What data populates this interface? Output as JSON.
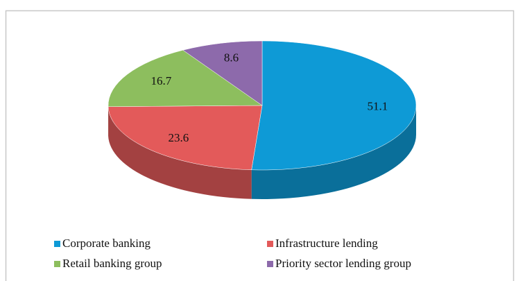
{
  "chart_data": {
    "type": "pie",
    "categories": [
      "Corporate banking",
      "Infrastructure lending",
      "Retail banking group",
      "Priority sector lending group"
    ],
    "values": [
      51.1,
      23.6,
      16.7,
      8.6
    ],
    "colors": [
      "#0e9ad6",
      "#e35a5a",
      "#8dbe5e",
      "#8d6aab"
    ],
    "legend": "bottom"
  }
}
